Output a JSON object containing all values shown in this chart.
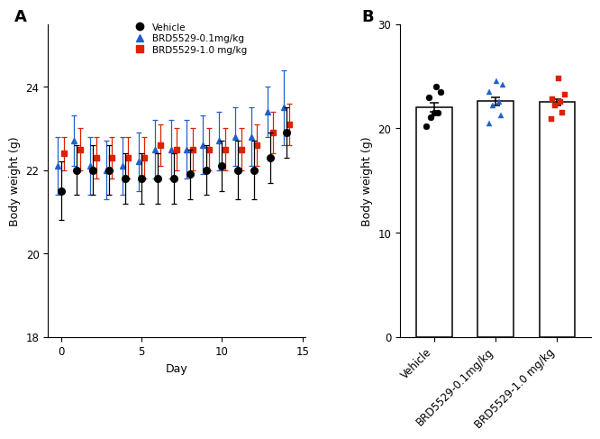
{
  "panel_A": {
    "days": [
      0,
      1,
      2,
      3,
      4,
      5,
      6,
      7,
      8,
      9,
      10,
      11,
      12,
      13,
      14
    ],
    "vehicle_mean": [
      21.5,
      22.0,
      22.0,
      22.0,
      21.8,
      21.8,
      21.8,
      21.8,
      21.9,
      22.0,
      22.1,
      22.0,
      22.0,
      22.3,
      22.9
    ],
    "vehicle_sem": [
      0.7,
      0.6,
      0.6,
      0.6,
      0.6,
      0.6,
      0.6,
      0.6,
      0.6,
      0.6,
      0.6,
      0.7,
      0.7,
      0.6,
      0.6
    ],
    "blue_mean": [
      22.1,
      22.7,
      22.1,
      22.0,
      22.1,
      22.2,
      22.5,
      22.5,
      22.5,
      22.6,
      22.7,
      22.8,
      22.8,
      23.4,
      23.5
    ],
    "blue_sem": [
      0.7,
      0.6,
      0.7,
      0.7,
      0.7,
      0.7,
      0.7,
      0.7,
      0.7,
      0.7,
      0.7,
      0.7,
      0.7,
      0.6,
      0.9
    ],
    "red_mean": [
      22.4,
      22.5,
      22.3,
      22.3,
      22.3,
      22.3,
      22.6,
      22.5,
      22.5,
      22.5,
      22.5,
      22.5,
      22.6,
      22.9,
      23.1
    ],
    "red_sem": [
      0.4,
      0.5,
      0.5,
      0.5,
      0.5,
      0.5,
      0.5,
      0.5,
      0.5,
      0.5,
      0.5,
      0.5,
      0.5,
      0.5,
      0.5
    ],
    "ylim": [
      18,
      25.5
    ],
    "yticks": [
      18,
      20,
      22,
      24
    ],
    "xlabel": "Day",
    "ylabel": "Body weight (g)"
  },
  "panel_B": {
    "categories": [
      "Vehicle",
      "BRD5529-0.1mg/kg",
      "BRD5529-1.0 mg/kg"
    ],
    "bar_means": [
      22.0,
      22.6,
      22.5
    ],
    "bar_sems": [
      0.45,
      0.38,
      0.28
    ],
    "vehicle_dots": [
      20.2,
      21.1,
      21.5,
      21.5,
      23.0,
      23.5,
      24.0
    ],
    "blue_dots": [
      20.5,
      21.2,
      22.2,
      22.5,
      23.5,
      24.2,
      24.5
    ],
    "red_dots": [
      20.9,
      21.5,
      22.2,
      22.5,
      22.8,
      23.2,
      24.8
    ],
    "vehicle_jitter": [
      -0.12,
      -0.06,
      0.01,
      0.07,
      -0.09,
      0.1,
      0.04
    ],
    "blue_jitter": [
      -0.11,
      0.09,
      -0.04,
      0.06,
      -0.1,
      0.11,
      0.01
    ],
    "red_jitter": [
      -0.1,
      0.08,
      -0.03,
      0.05,
      -0.08,
      0.12,
      0.02
    ],
    "ylim": [
      0,
      30
    ],
    "yticks": [
      0,
      10,
      20,
      30
    ],
    "ylabel": "Body weight (g)"
  },
  "colors": {
    "vehicle": "#000000",
    "blue": "#2060cc",
    "red": "#dd2200"
  },
  "legend": {
    "vehicle_label": "Vehicle",
    "blue_label": "BRD5529-0.1mg/kg",
    "red_label": "BRD5529-1.0 mg/kg"
  }
}
